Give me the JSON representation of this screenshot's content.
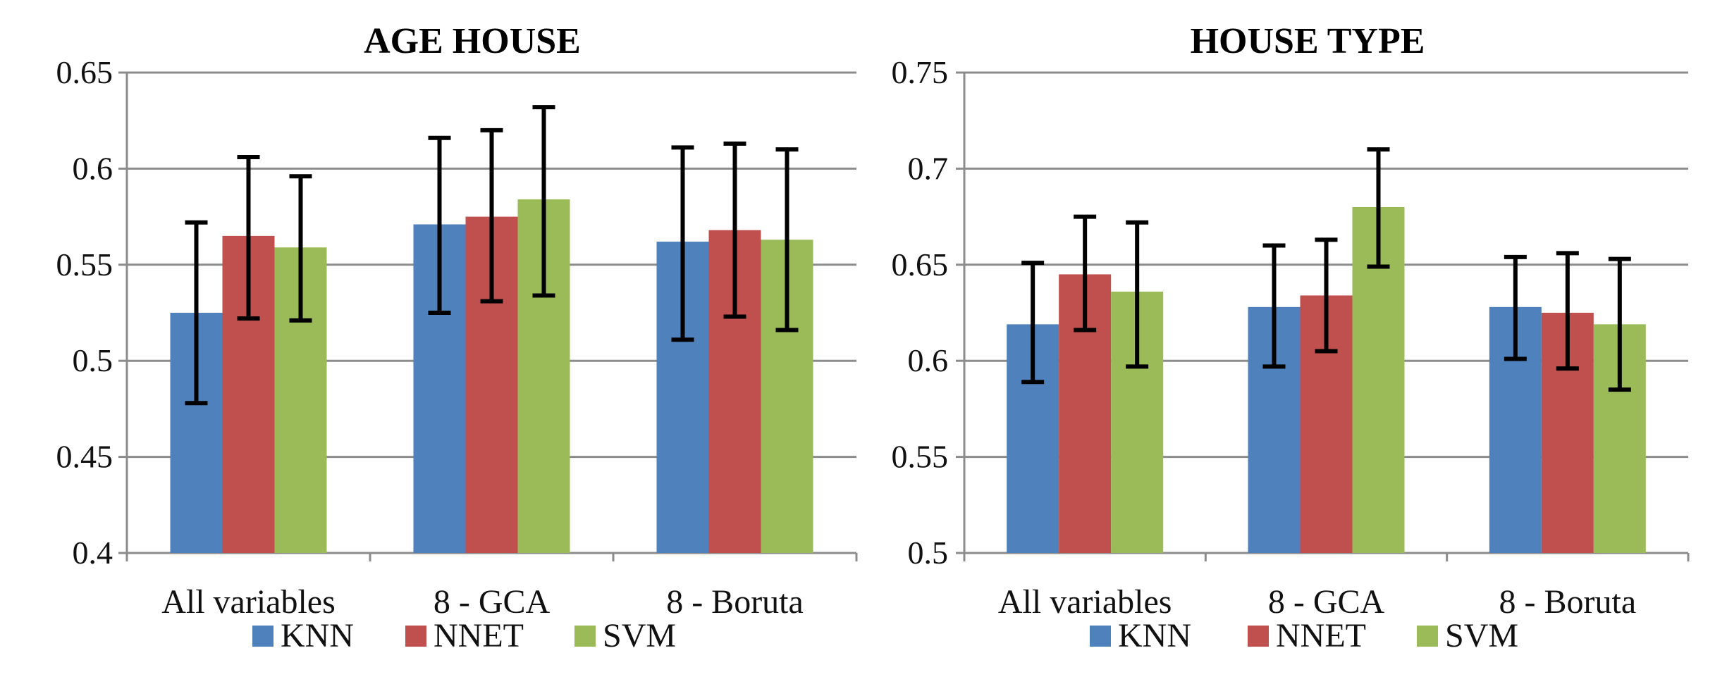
{
  "chart_data": [
    {
      "type": "bar",
      "title": "AGE HOUSE",
      "xlabel": "",
      "ylabel": "",
      "ylim": [
        0.4,
        0.65
      ],
      "yticks": [
        0.4,
        0.45,
        0.5,
        0.55,
        0.6,
        0.65
      ],
      "ytick_labels": [
        "0.4",
        "0.45",
        "0.5",
        "0.55",
        "0.6",
        "0.65"
      ],
      "categories": [
        "All variables",
        "8 - GCA",
        "8 - Boruta"
      ],
      "series": [
        {
          "name": "KNN",
          "color": "#4f81bd",
          "values": [
            0.525,
            0.571,
            0.562
          ],
          "err_low": [
            0.478,
            0.525,
            0.511
          ],
          "err_high": [
            0.572,
            0.616,
            0.611
          ]
        },
        {
          "name": "NNET",
          "color": "#c0504d",
          "values": [
            0.565,
            0.575,
            0.568
          ],
          "err_low": [
            0.522,
            0.531,
            0.523
          ],
          "err_high": [
            0.606,
            0.62,
            0.613
          ]
        },
        {
          "name": "SVM",
          "color": "#9bbb59",
          "values": [
            0.559,
            0.584,
            0.563
          ],
          "err_low": [
            0.521,
            0.534,
            0.516
          ],
          "err_high": [
            0.596,
            0.632,
            0.61
          ]
        }
      ],
      "grid": true,
      "legend": "bottom"
    },
    {
      "type": "bar",
      "title": "HOUSE TYPE",
      "xlabel": "",
      "ylabel": "",
      "ylim": [
        0.5,
        0.75
      ],
      "yticks": [
        0.5,
        0.55,
        0.6,
        0.65,
        0.7,
        0.75
      ],
      "ytick_labels": [
        "0.5",
        "0.55",
        "0.6",
        "0.65",
        "0.7",
        "0.75"
      ],
      "categories": [
        "All variables",
        "8 - GCA",
        "8 - Boruta"
      ],
      "series": [
        {
          "name": "KNN",
          "color": "#4f81bd",
          "values": [
            0.619,
            0.628,
            0.628
          ],
          "err_low": [
            0.589,
            0.597,
            0.601
          ],
          "err_high": [
            0.651,
            0.66,
            0.654
          ]
        },
        {
          "name": "NNET",
          "color": "#c0504d",
          "values": [
            0.645,
            0.634,
            0.625
          ],
          "err_low": [
            0.616,
            0.605,
            0.596
          ],
          "err_high": [
            0.675,
            0.663,
            0.656
          ]
        },
        {
          "name": "SVM",
          "color": "#9bbb59",
          "values": [
            0.636,
            0.68,
            0.619
          ],
          "err_low": [
            0.597,
            0.649,
            0.585
          ],
          "err_high": [
            0.672,
            0.71,
            0.653
          ]
        }
      ],
      "grid": true,
      "legend": "bottom"
    }
  ]
}
